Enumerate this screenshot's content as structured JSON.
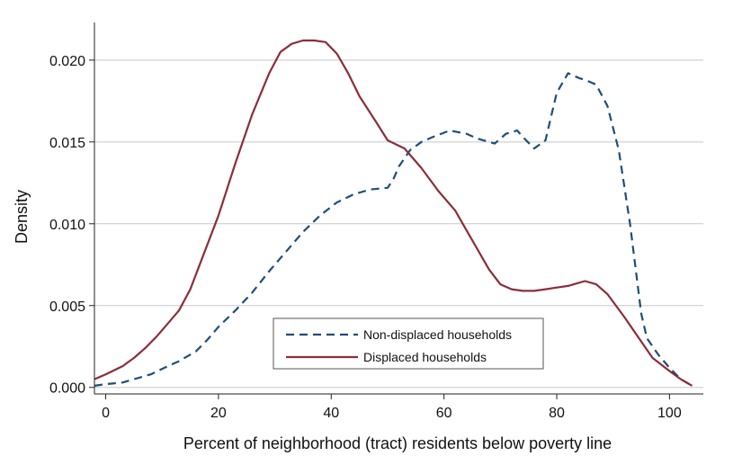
{
  "chart_data": {
    "type": "line",
    "title": "",
    "xlabel": "Percent of neighborhood (tract) residents below poverty line",
    "ylabel": "Density",
    "xlim": [
      -2,
      106
    ],
    "ylim": [
      -0.0004,
      0.0223
    ],
    "x_ticks": [
      0,
      20,
      40,
      60,
      80,
      100
    ],
    "x_tick_labels": [
      "0",
      "20",
      "40",
      "60",
      "80",
      "100"
    ],
    "y_ticks": [
      0,
      0.005,
      0.01,
      0.015,
      0.02
    ],
    "y_tick_labels": [
      "0.000",
      "0.005",
      "0.010",
      "0.015",
      "0.020"
    ],
    "grid": true,
    "legend_position": "bottom-center",
    "series": [
      {
        "name": "Non-displaced households",
        "color": "#1f4e79",
        "dash": "dashed",
        "x": [
          -2,
          0,
          3,
          5,
          8,
          11,
          13,
          16,
          18,
          20,
          23,
          26,
          29,
          32,
          35,
          38,
          41,
          44,
          47,
          50,
          51,
          52,
          54,
          56,
          58,
          61,
          64,
          66,
          69,
          71,
          73,
          74,
          76,
          78,
          80,
          82,
          84,
          85,
          87,
          89,
          91,
          93,
          95,
          96,
          98,
          100,
          102,
          104
        ],
        "y": [
          0.0001,
          0.0002,
          0.0003,
          0.0005,
          0.0008,
          0.0013,
          0.0016,
          0.0022,
          0.0029,
          0.0037,
          0.0047,
          0.0058,
          0.0071,
          0.0083,
          0.0095,
          0.0105,
          0.0113,
          0.0118,
          0.0121,
          0.0122,
          0.0127,
          0.0135,
          0.0145,
          0.015,
          0.0153,
          0.0157,
          0.0155,
          0.0152,
          0.0149,
          0.0155,
          0.0157,
          0.0153,
          0.0146,
          0.0151,
          0.018,
          0.0192,
          0.0189,
          0.0188,
          0.0185,
          0.0172,
          0.0145,
          0.01,
          0.0045,
          0.003,
          0.002,
          0.0012,
          0.0005,
          0.0001
        ]
      },
      {
        "name": "Displaced households",
        "color": "#8b2e3a",
        "dash": "solid",
        "x": [
          -2,
          0,
          3,
          5,
          7,
          9,
          11,
          13,
          15,
          17,
          20,
          23,
          26,
          29,
          31,
          33,
          35,
          37,
          39,
          41,
          43,
          45,
          48,
          50,
          53,
          56,
          59,
          62,
          64,
          66,
          68,
          70,
          72,
          74,
          76,
          78,
          80,
          82,
          85,
          87,
          89,
          92,
          95,
          97,
          100,
          102,
          104
        ],
        "y": [
          0.0005,
          0.0008,
          0.0013,
          0.0018,
          0.0024,
          0.0031,
          0.0039,
          0.0047,
          0.006,
          0.0078,
          0.0105,
          0.0137,
          0.0167,
          0.0192,
          0.0205,
          0.021,
          0.0212,
          0.0212,
          0.0211,
          0.0204,
          0.0192,
          0.0178,
          0.0162,
          0.0151,
          0.0146,
          0.0134,
          0.012,
          0.0108,
          0.0096,
          0.0084,
          0.0072,
          0.0063,
          0.006,
          0.0059,
          0.0059,
          0.006,
          0.0061,
          0.0062,
          0.0065,
          0.0063,
          0.0057,
          0.0043,
          0.0028,
          0.0018,
          0.001,
          0.0005,
          0.0001
        ]
      }
    ]
  }
}
